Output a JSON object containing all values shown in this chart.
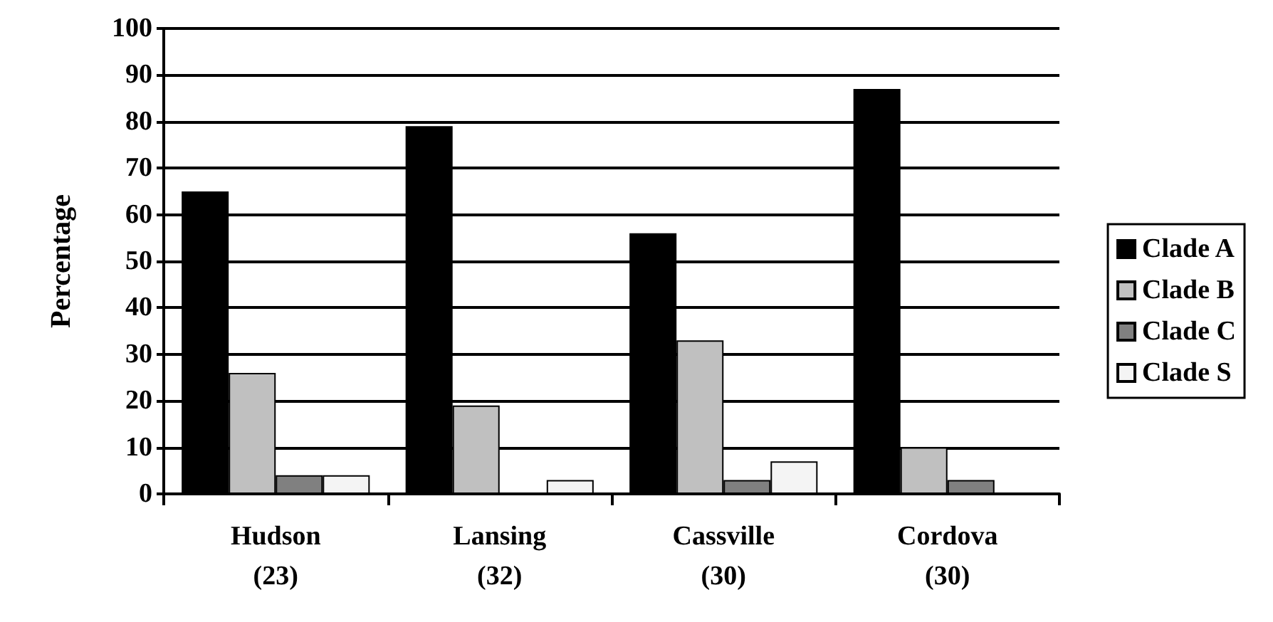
{
  "chart_data": {
    "type": "bar",
    "ylabel": "Percentage",
    "categories": [
      "Hudson\n(23)",
      "Lansing\n(32)",
      "Cassville\n(30)",
      "Cordova\n(30)"
    ],
    "series": [
      {
        "name": "Clade A",
        "color": "#000000",
        "values": [
          65,
          79,
          56,
          87
        ]
      },
      {
        "name": "Clade B",
        "color": "#c0c0c0",
        "values": [
          26,
          19,
          33,
          10
        ]
      },
      {
        "name": "Clade C",
        "color": "#808080",
        "values": [
          4,
          null,
          3,
          3
        ]
      },
      {
        "name": "Clade S",
        "color": "#f4f4f4",
        "values": [
          4,
          3,
          7,
          null
        ]
      }
    ],
    "ylim": [
      0,
      100
    ],
    "yticks": [
      0,
      10,
      20,
      30,
      40,
      50,
      60,
      70,
      80,
      90,
      100
    ],
    "grid": "y",
    "legend": "right"
  }
}
